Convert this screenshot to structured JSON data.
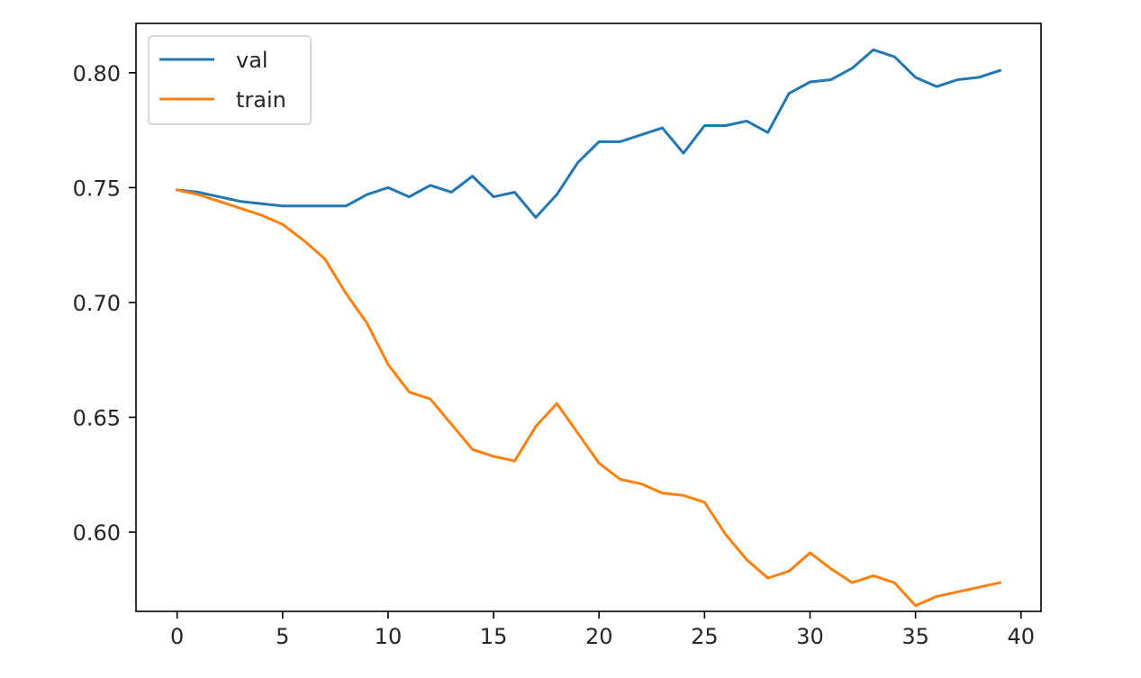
{
  "chart_data": {
    "type": "line",
    "title": "",
    "xlabel": "",
    "ylabel": "",
    "xlim": [
      -1.95,
      40.95
    ],
    "ylim": [
      0.5655,
      0.8215
    ],
    "x_ticks": [
      0,
      5,
      10,
      15,
      20,
      25,
      30,
      35,
      40
    ],
    "x_tick_labels": [
      "0",
      "5",
      "10",
      "15",
      "20",
      "25",
      "30",
      "35",
      "40"
    ],
    "y_ticks": [
      0.6,
      0.65,
      0.7,
      0.75,
      0.8
    ],
    "y_tick_labels": [
      "0.60",
      "0.65",
      "0.70",
      "0.75",
      "0.80"
    ],
    "grid": false,
    "legend_position": "upper-left",
    "x": [
      0,
      1,
      2,
      3,
      4,
      5,
      6,
      7,
      8,
      9,
      10,
      11,
      12,
      13,
      14,
      15,
      16,
      17,
      18,
      19,
      20,
      21,
      22,
      23,
      24,
      25,
      26,
      27,
      28,
      29,
      30,
      31,
      32,
      33,
      34,
      35,
      36,
      37,
      38,
      39
    ],
    "series": [
      {
        "name": "val",
        "color": "#1f77b4",
        "values": [
          0.749,
          0.748,
          0.746,
          0.744,
          0.743,
          0.742,
          0.742,
          0.742,
          0.742,
          0.747,
          0.75,
          0.746,
          0.751,
          0.748,
          0.755,
          0.746,
          0.748,
          0.737,
          0.747,
          0.761,
          0.77,
          0.77,
          0.773,
          0.776,
          0.765,
          0.777,
          0.777,
          0.779,
          0.774,
          0.791,
          0.796,
          0.797,
          0.802,
          0.81,
          0.807,
          0.798,
          0.794,
          0.797,
          0.798,
          0.801
        ]
      },
      {
        "name": "train",
        "color": "#ff7f0e",
        "values": [
          0.749,
          0.747,
          0.744,
          0.741,
          0.738,
          0.734,
          0.727,
          0.719,
          0.704,
          0.691,
          0.673,
          0.661,
          0.658,
          0.647,
          0.636,
          0.633,
          0.631,
          0.646,
          0.656,
          0.643,
          0.63,
          0.623,
          0.621,
          0.617,
          0.616,
          0.613,
          0.599,
          0.588,
          0.58,
          0.583,
          0.591,
          0.584,
          0.578,
          0.581,
          0.578,
          0.568,
          0.572,
          0.574,
          0.576,
          0.578
        ]
      }
    ]
  }
}
